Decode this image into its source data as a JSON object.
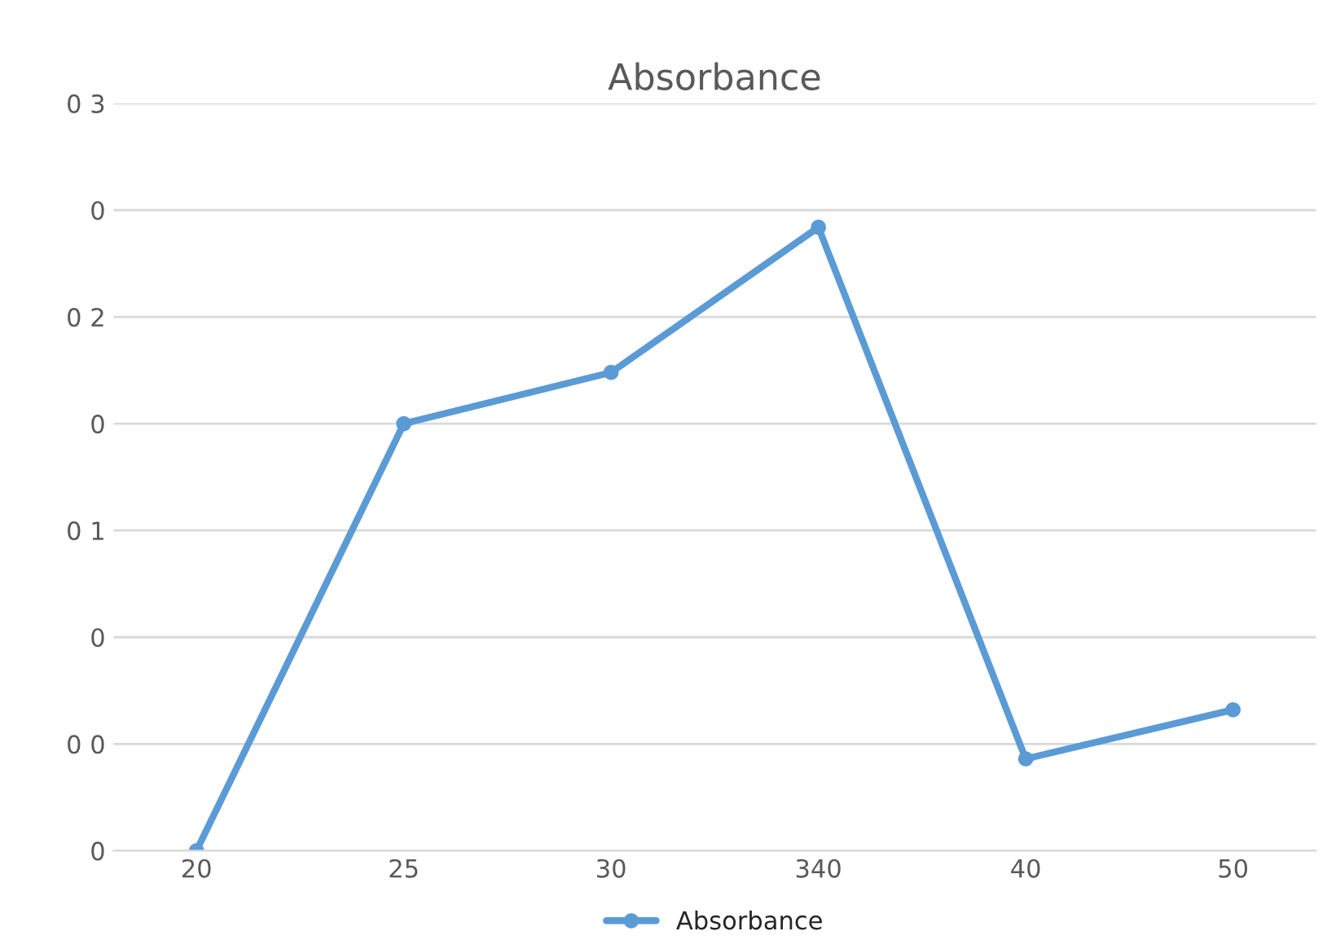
{
  "chart_data": {
    "type": "line",
    "title": "Absorbance",
    "categories": [
      "20",
      "25",
      "30",
      "340",
      "40",
      "50"
    ],
    "series": [
      {
        "name": "Absorbance",
        "color": "#5b9bd5",
        "values": [
          0,
          0.2,
          0.224,
          0.292,
          0.043,
          0.066
        ]
      }
    ],
    "ylim": [
      0,
      0.35
    ],
    "yticks": [
      {
        "value": 0,
        "label": "0"
      },
      {
        "value": 0.05,
        "label": "0 0"
      },
      {
        "value": 0.1,
        "label": "0"
      },
      {
        "value": 0.15,
        "label": "0 1"
      },
      {
        "value": 0.2,
        "label": "0"
      },
      {
        "value": 0.25,
        "label": "0 2"
      },
      {
        "value": 0.3,
        "label": "0"
      },
      {
        "value": 0.35,
        "label": "0 3"
      }
    ],
    "grid": "y",
    "legend": "bottom",
    "marker": "circle",
    "line_style": "solid"
  }
}
